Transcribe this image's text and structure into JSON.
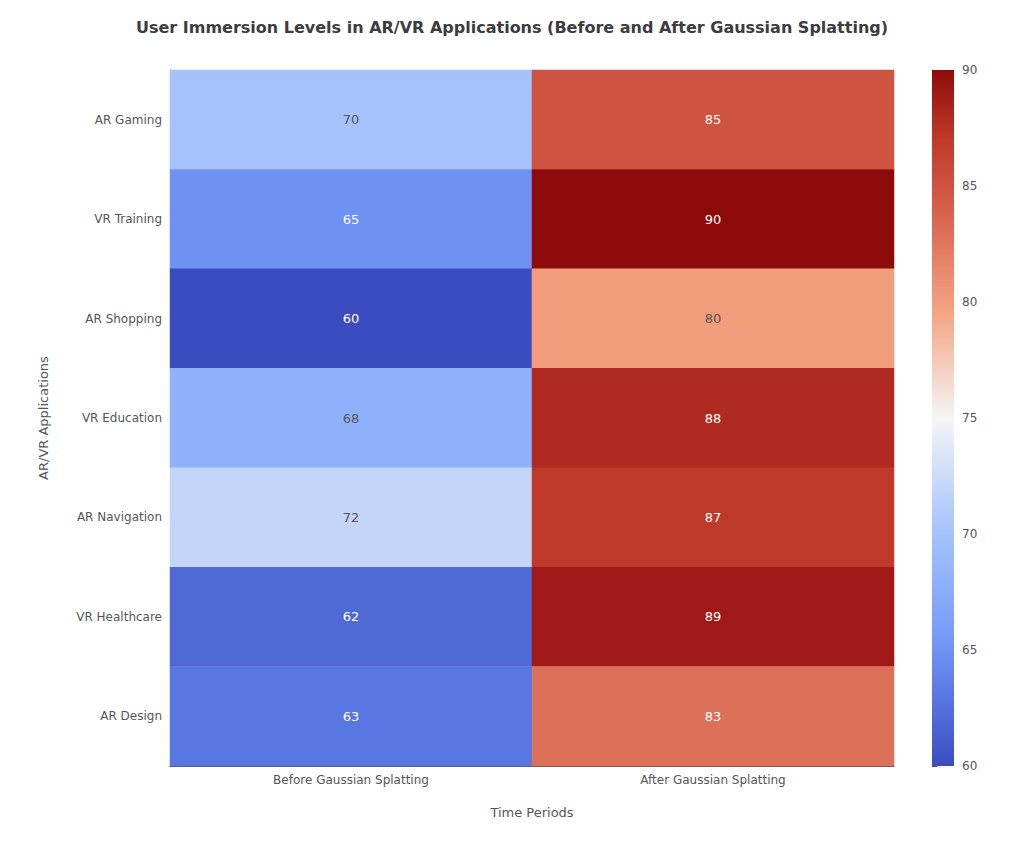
{
  "chart_data": {
    "type": "heatmap",
    "title": "User Immersion Levels in AR/VR Applications (Before and After Gaussian Splatting)",
    "xlabel": "Time Periods",
    "ylabel": "AR/VR Applications",
    "x_categories": [
      "Before Gaussian Splatting",
      "After Gaussian Splatting"
    ],
    "y_categories": [
      "AR Gaming",
      "VR Training",
      "AR Shopping",
      "VR Education",
      "AR Navigation",
      "VR Healthcare",
      "AR Design"
    ],
    "values": [
      [
        70,
        85
      ],
      [
        65,
        90
      ],
      [
        60,
        80
      ],
      [
        68,
        88
      ],
      [
        72,
        87
      ],
      [
        62,
        89
      ],
      [
        63,
        83
      ]
    ],
    "colorbar_range": [
      60,
      90
    ],
    "colorbar_ticks": [
      60,
      65,
      70,
      75,
      80,
      85,
      90
    ],
    "colormap": [
      [
        0.0,
        "#3b4cc0"
      ],
      [
        0.1,
        "#5977e3"
      ],
      [
        0.2,
        "#7b9ff9"
      ],
      [
        0.35,
        "#aac7fd"
      ],
      [
        0.5,
        "#f5f5f5"
      ],
      [
        0.65,
        "#f4a582"
      ],
      [
        0.8,
        "#d6604d"
      ],
      [
        0.9,
        "#c0392b"
      ],
      [
        1.0,
        "#8e0b0b"
      ]
    ],
    "data_labels": true,
    "grid": false
  }
}
